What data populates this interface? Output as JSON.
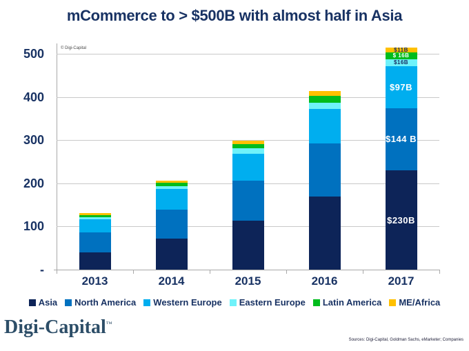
{
  "title": "mCommerce to > $500B with almost half in Asia",
  "watermark": "© Digi-Capital",
  "footer": {
    "logo": "Digi-Capital",
    "logo_tm": "™",
    "sources": "Sources: Digi-Capital, Goldman Sachs, eMarketer; Companies"
  },
  "colors": {
    "navy_text": "#183263",
    "gridline": "#c9c9c9",
    "axis": "#a8a8a8",
    "asia": "#0d2458",
    "north_america": "#0071bf",
    "western_europe": "#00aeef",
    "eastern_europe": "#6ff2fa",
    "latin_america": "#00bc1c",
    "me_africa": "#ffc000"
  },
  "chart_data": {
    "type": "bar",
    "stacked": true,
    "title": "mCommerce to > $500B with almost half in Asia",
    "xlabel": "",
    "ylabel": "",
    "categories": [
      "2013",
      "2014",
      "2015",
      "2016",
      "2017"
    ],
    "ylim": [
      0,
      500
    ],
    "grid": true,
    "legend_position": "bottom",
    "yticks": [
      {
        "label": "-",
        "value": 0
      },
      {
        "label": "100",
        "value": 100
      },
      {
        "label": "200",
        "value": 200
      },
      {
        "label": "300",
        "value": 300
      },
      {
        "label": "400",
        "value": 400
      },
      {
        "label": "500",
        "value": 500
      }
    ],
    "series": [
      {
        "name": "Asia",
        "color": "#0d2458",
        "values": [
          40,
          72,
          114,
          170,
          230
        ],
        "final_label": "$230B",
        "final_label_color": "#ffffff"
      },
      {
        "name": "North America",
        "color": "#0071bf",
        "values": [
          47,
          67,
          92,
          122,
          144
        ],
        "final_label": "$144 B",
        "final_label_color": "#ffffff"
      },
      {
        "name": "Western Europe",
        "color": "#00aeef",
        "values": [
          30,
          48,
          62,
          81,
          97
        ],
        "final_label": "$97B",
        "final_label_color": "#ffffff"
      },
      {
        "name": "Eastern Europe",
        "color": "#6ff2fa",
        "values": [
          5,
          6,
          13,
          14,
          16
        ],
        "final_label": "$16B",
        "final_label_color": "#14295e"
      },
      {
        "name": "Latin America",
        "color": "#00bc1c",
        "values": [
          5,
          8,
          10,
          15,
          16
        ],
        "final_label": "$ 16B",
        "final_label_color": "#ffffff"
      },
      {
        "name": "ME/Africa",
        "color": "#ffc000",
        "values": [
          4,
          5,
          8,
          12,
          11
        ],
        "final_label": "$11B",
        "final_label_color": "#14295e"
      }
    ]
  }
}
